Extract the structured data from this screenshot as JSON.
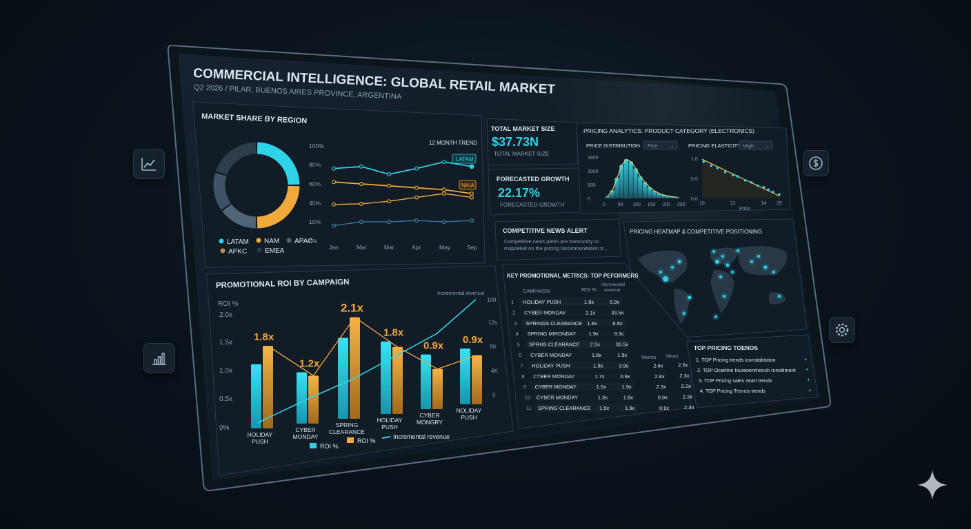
{
  "header": {
    "title": "COMMERCIAL INTELLIGENCE: GLOBAL RETAIL MARKET",
    "subtitle": "Q2 2026 / PILAR, BUENOS AIRES PROVINCE, ARGENTINA"
  },
  "side_icons": {
    "left_top": "line-chart-icon",
    "left_bottom": "bar-chart-icon",
    "right_top": "dollar-icon",
    "right_bottom": "gear-icon"
  },
  "colors": {
    "cyan": "#2ed3e8",
    "orange": "#f0a93a",
    "slate": "#4e6678",
    "dark": "#2d3d4b",
    "blue": "#3b8fb8"
  },
  "market_share": {
    "title": "MARKET SHARE BY REGION",
    "trend_label": "12 MONTH TREND",
    "legend": [
      "LATAM",
      "NAM",
      "APAC",
      "APKC",
      "EMEA"
    ],
    "tag_latam": "LATAM",
    "tag_nam": "NAIA"
  },
  "kpis": {
    "total_label": "TOTAL MARKET SIZE",
    "total_value": "$37.73N",
    "total_sub": "TOTAL MARKET SIZE",
    "growth_label": "FORECASTED GROWTH",
    "growth_value": "22.17%",
    "growth_sub": "FORECASTED GROWTH"
  },
  "pricing": {
    "title": "PRICING ANALYTICS: PRODUCT CATEGORY (ELECTRONICS)",
    "dist_label": "PRICE DISTRIBUTION",
    "dist_select": "Prce",
    "elast_label": "PRICING ELASTICITY",
    "elast_select": "Vegh",
    "elast_xlabel": "Price"
  },
  "news": {
    "title": "COMPETITIVE NEWS ALERT",
    "line1": "Competitive news pletin are transocrity to",
    "line2": "mapoeled on the pricing tocommonitation tr..."
  },
  "heatmap": {
    "title": "PRICING HEATMAP & COMPETITIVE POSITIONING"
  },
  "promo": {
    "title": "PROMOTIONAL ROI BY CAMPAIGN",
    "y_label": "ROI %",
    "right_label": "Incremental revenue",
    "legend": [
      "ROI %",
      "ROI %",
      "Incremental revenue"
    ]
  },
  "table": {
    "title": "KEY PROMOTIONAL METRICS: TOP PEFORMERS",
    "headers": [
      "CAMPAIGN",
      "ROI %",
      "Incremental revenue"
    ],
    "extra_headers": [
      "Woros",
      "Naas"
    ],
    "rows": [
      [
        "1",
        "HOLIDAY PUSH",
        "1.8x",
        "5.9x",
        "",
        ""
      ],
      [
        "2",
        "CYBER MONDAY",
        "2.1x",
        "33.5x",
        "",
        ""
      ],
      [
        "3",
        "SPRINGS CLEARANCE",
        "1.8x",
        "6.9z",
        "",
        ""
      ],
      [
        "4",
        "SPRING MIRONDAY",
        "1.9x",
        "9.9c",
        "",
        ""
      ],
      [
        "5",
        "SPRHS CLEARANCE",
        "2.5x",
        "35.5x",
        "",
        ""
      ],
      [
        "6",
        "CYBER MONDAY",
        "1.8x",
        "1.9x",
        "",
        ""
      ],
      [
        "7",
        "HOLIDAY PUSH",
        "1.9s",
        "3.9s",
        "2.6x",
        "2.5x"
      ],
      [
        "8",
        "CTBER MONDAY",
        "1.7s",
        "0.9x",
        "2.8x",
        "2.3x"
      ],
      [
        "9",
        "CYBER MONDAY",
        "1.5x",
        "1.9x",
        "2.3x",
        "2.2s"
      ],
      [
        "10",
        "CYBER MONDAY",
        "1.3s",
        "1.8x",
        "0.9x",
        "2.3x"
      ],
      [
        "11",
        "SPRING CLEARANCE",
        "1.5x",
        "1.9x",
        "0.9x",
        "2.34"
      ]
    ]
  },
  "trends": {
    "title": "TOP PRICING TOENOS",
    "items": [
      "1. TOP Pricing trends iconstabistion",
      "2. TOP Ocartine Iouranenmonsh ronsitiment",
      "3. TOP Pricing sales seart trends",
      "4. TOP Pricing Trencis trends"
    ]
  },
  "chart_data": [
    {
      "type": "pie",
      "title": "MARKET SHARE BY REGION",
      "labels": [
        "LATAM",
        "NAM",
        "APAC",
        "APKC",
        "EMEA"
      ],
      "values": [
        25,
        25,
        15,
        15,
        20
      ]
    },
    {
      "type": "line",
      "title": "12 MONTH TREND",
      "categories": [
        "Jan",
        "Mar",
        "Mar",
        "Apr",
        "May",
        "Sep"
      ],
      "y_ticks": [
        "100%",
        "80%",
        "60%",
        "40%",
        "10%",
        "0%"
      ],
      "series": [
        {
          "name": "LATAM",
          "values": [
            76,
            78,
            70,
            76,
            83,
            78
          ]
        },
        {
          "name": "NAM",
          "values": [
            62,
            60,
            58,
            56,
            54,
            50
          ]
        },
        {
          "values": [
            38,
            39,
            42,
            46,
            50,
            46
          ]
        },
        {
          "values": [
            8,
            10,
            10,
            12,
            10,
            12
          ]
        }
      ]
    },
    {
      "type": "bar",
      "title": "PRICE DISTRIBUTION",
      "x_ticks": [
        "0",
        "50",
        "100",
        "150",
        "200",
        "250"
      ],
      "y_ticks": [
        "1800",
        "1500",
        "1000",
        "500",
        "0"
      ],
      "values": [
        100,
        350,
        900,
        1450,
        1700,
        1600,
        1300,
        950,
        700,
        480,
        330,
        220,
        150,
        100,
        70,
        45
      ]
    },
    {
      "type": "scatter",
      "title": "PRICING ELASTICITY",
      "xlabel": "Price",
      "x_ticks": [
        "10",
        "12",
        "14",
        "15"
      ],
      "y_ticks": [
        "1.0",
        "0.5",
        "0.0"
      ],
      "x": [
        10.1,
        10.6,
        11.0,
        11.5,
        12.0,
        12.3,
        12.8,
        13.2,
        13.6,
        14.0,
        14.3,
        14.6,
        15.0
      ],
      "y": [
        0.92,
        0.82,
        0.76,
        0.66,
        0.58,
        0.55,
        0.45,
        0.4,
        0.32,
        0.28,
        0.22,
        0.16,
        0.1
      ]
    },
    {
      "type": "bar",
      "title": "PROMOTIONAL ROI BY CAMPAIGN",
      "categories": [
        "HOLIDAY PUSH",
        "CYBER MONDAY",
        "SPRING CLEARANCE",
        "HOLIDAY PUSH",
        "CYBER MONGRY",
        "NOLIDAY PUSH"
      ],
      "bar_labels": [
        "1.8x",
        "1.2x",
        "2.1x",
        "1.8x",
        "0.9x",
        "0.9x"
      ],
      "y_ticks": [
        "2.0x",
        "1.5x",
        "1.0x",
        "0.5x",
        "0%"
      ],
      "right_ticks": [
        "100",
        "12s",
        "90",
        "4X",
        "0"
      ],
      "ylim": [
        0,
        2.0
      ],
      "series": [
        {
          "name": "ROI %",
          "values": [
            1.15,
            0.92,
            1.45,
            1.3,
            0.98,
            1.0
          ]
        },
        {
          "name": "ROI %",
          "values": [
            1.48,
            0.86,
            1.82,
            1.2,
            0.72,
            0.88
          ]
        },
        {
          "name": "Incremental revenue",
          "values": [
            0.18,
            0.48,
            0.72,
            1.05,
            1.35,
            1.88
          ]
        }
      ]
    }
  ]
}
